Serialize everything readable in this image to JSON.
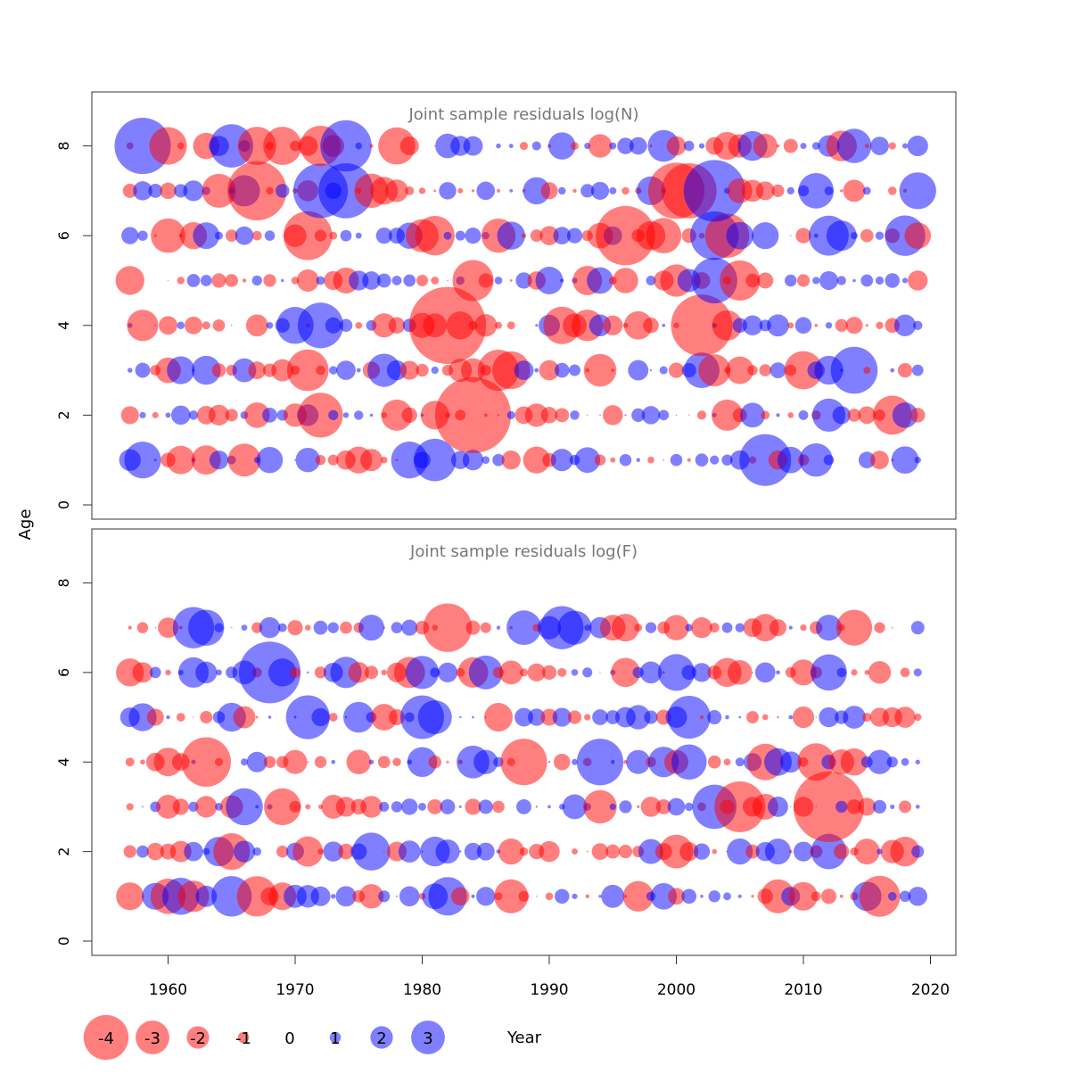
{
  "chart_data": [
    {
      "type": "scatter",
      "title": "Joint sample residuals log(N)",
      "ylabel": "Age",
      "xlabel": "Year",
      "ylim": [
        0,
        9
      ],
      "xlim": [
        1954,
        2022
      ],
      "x_ticks": [
        1960,
        1970,
        1980,
        1990,
        2000,
        2010,
        2020
      ],
      "y_ticks": [
        0,
        2,
        4,
        6,
        8
      ],
      "years": [
        1957,
        2019
      ],
      "ages": [
        1,
        2,
        3,
        4,
        5,
        6,
        7,
        8
      ],
      "positive_color": "#0000FF",
      "negative_color": "#FF0000",
      "residual_pattern_seed": 20240601
    },
    {
      "type": "scatter",
      "title": "Joint sample residuals log(F)",
      "ylabel": "Age",
      "xlabel": "Year",
      "ylim": [
        0,
        9
      ],
      "xlim": [
        1954,
        2022
      ],
      "x_ticks": [
        1960,
        1970,
        1980,
        1990,
        2000,
        2010,
        2020
      ],
      "y_ticks": [
        0,
        2,
        4,
        6,
        8
      ],
      "years": [
        1957,
        2019
      ],
      "ages": [
        1,
        2,
        3,
        4,
        5,
        6,
        7
      ],
      "positive_color": "#0000FF",
      "negative_color": "#FF0000",
      "residual_pattern_seed": 77123
    }
  ],
  "shared_ylabel": "Age",
  "shared_xlabel": "Year",
  "legend": {
    "labels": [
      "-4",
      "-3",
      "-2",
      "-1",
      "0",
      "1",
      "2",
      "3"
    ],
    "values": [
      -4,
      -3,
      -2,
      -1,
      0,
      1,
      2,
      3
    ]
  }
}
